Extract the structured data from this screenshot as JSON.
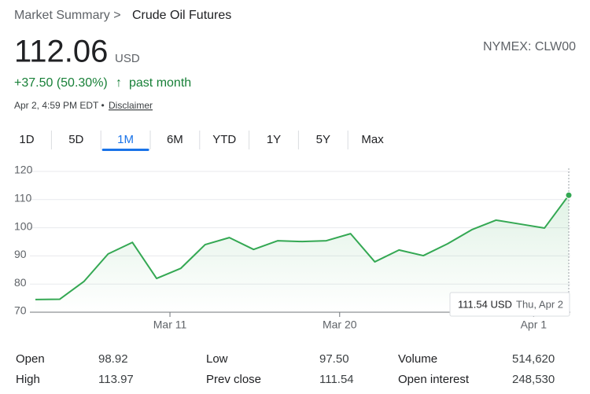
{
  "header": {
    "breadcrumb": "Market Summary >",
    "name": "Crude Oil Futures",
    "price": "112.06",
    "currency": "USD",
    "change": "+37.50 (50.30%)",
    "arrow": "↑",
    "period": "past month",
    "timestamp": "Apr 2, 4:59 PM EDT •",
    "disclaimer": "Disclaimer",
    "symbol": "NYMEX: CLW00"
  },
  "tabs": [
    "1D",
    "5D",
    "1M",
    "6M",
    "YTD",
    "1Y",
    "5Y",
    "Max"
  ],
  "selected_tab": "1M",
  "chart_data": {
    "type": "line",
    "color": "#34a853",
    "grid": true,
    "categories": [
      null,
      null,
      null,
      null,
      null,
      null,
      "Mar 11",
      null,
      null,
      null,
      null,
      null,
      null,
      "Mar 20",
      null,
      null,
      null,
      null,
      null,
      null,
      null,
      "Apr 1",
      null
    ],
    "values": [
      74.5,
      74.6,
      80.9,
      90.7,
      94.8,
      82.0,
      85.6,
      94.0,
      96.5,
      92.3,
      95.4,
      95.1,
      95.4,
      97.9,
      87.9,
      92.1,
      90.1,
      94.3,
      99.3,
      102.7,
      101.3,
      99.9,
      111.54
    ],
    "ylim": [
      70,
      120
    ],
    "yticks": [
      70,
      80,
      90,
      100,
      110,
      120
    ]
  },
  "tooltip": {
    "label": "111.54 USD",
    "date": "Thu, Apr 2"
  },
  "stats": [
    [
      [
        "Open",
        "98.92"
      ],
      [
        "Low",
        "97.50"
      ],
      [
        "Volume",
        "514,620"
      ]
    ],
    [
      [
        "High",
        "113.97"
      ],
      [
        "Prev close",
        "111.54"
      ],
      [
        "Open interest",
        "248,530"
      ]
    ]
  ]
}
